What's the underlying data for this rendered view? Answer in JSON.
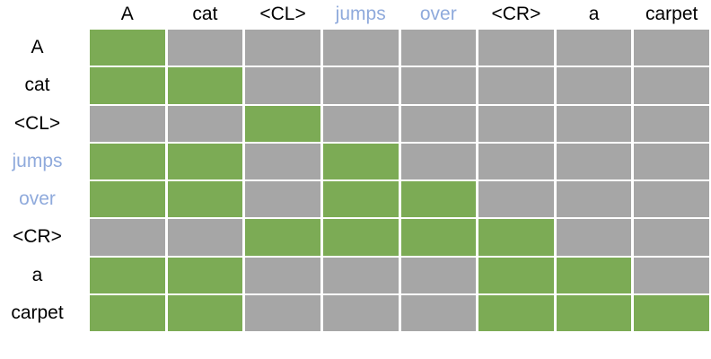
{
  "figure": {
    "description_present_in_pixels_only": "binary attention mask matrix",
    "highlighted_tokens": [
      "jumps",
      "over"
    ]
  },
  "chart_data": {
    "type": "heatmap",
    "title": "",
    "x_labels": [
      "A",
      "cat",
      "<CL>",
      "jumps",
      "over",
      "<CR>",
      "a",
      "carpet"
    ],
    "y_labels": [
      "A",
      "cat",
      "<CL>",
      "jumps",
      "over",
      "<CR>",
      "a",
      "carpet"
    ],
    "matrix": [
      [
        1,
        0,
        0,
        0,
        0,
        0,
        0,
        0
      ],
      [
        1,
        1,
        0,
        0,
        0,
        0,
        0,
        0
      ],
      [
        0,
        0,
        1,
        0,
        0,
        0,
        0,
        0
      ],
      [
        1,
        1,
        0,
        1,
        0,
        0,
        0,
        0
      ],
      [
        1,
        1,
        0,
        1,
        1,
        0,
        0,
        0
      ],
      [
        0,
        0,
        1,
        1,
        1,
        1,
        0,
        0
      ],
      [
        1,
        1,
        0,
        0,
        0,
        1,
        1,
        0
      ],
      [
        1,
        1,
        0,
        0,
        0,
        1,
        1,
        1
      ]
    ],
    "value_meaning": {
      "1": "attended (green cell)",
      "0": "masked (gray cell)"
    },
    "colors": {
      "attended": "#7CAB55",
      "masked": "#A6A6A6",
      "highlight_label": "#8FAADC",
      "label_text": "#000000",
      "cell_gap": "#FFFFFF"
    },
    "highlighted_tokens": [
      "jumps",
      "over"
    ],
    "grid_on": true,
    "legend": "none"
  }
}
